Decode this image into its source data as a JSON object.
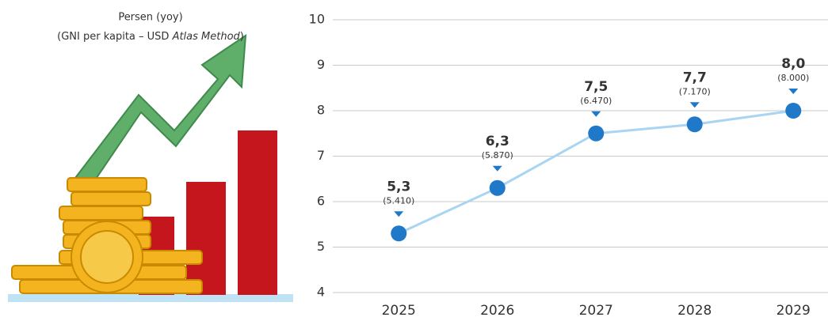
{
  "chart_data": {
    "type": "line",
    "title": "Persen (yoy)",
    "subtitle_parts": [
      "(GNI per kapita – USD ",
      "Atlas Method",
      ")"
    ],
    "categories": [
      "2025",
      "2026",
      "2027",
      "2028",
      "2029"
    ],
    "values": [
      5.3,
      6.3,
      7.5,
      7.7,
      8.0
    ],
    "value_labels": [
      "5,3",
      "6,3",
      "7,5",
      "7,7",
      "8,0"
    ],
    "gni_values": [
      5410,
      5870,
      6470,
      7170,
      8000
    ],
    "gni_labels": [
      "(5.410)",
      "(5.870)",
      "(6.470)",
      "(7.170)",
      "(8.000)"
    ],
    "color": "#1f78c8",
    "line_color": "#a9d5f2",
    "ylim": [
      4,
      10
    ],
    "yticks": [
      4,
      5,
      6,
      7,
      8,
      9,
      10
    ],
    "grid": true
  }
}
